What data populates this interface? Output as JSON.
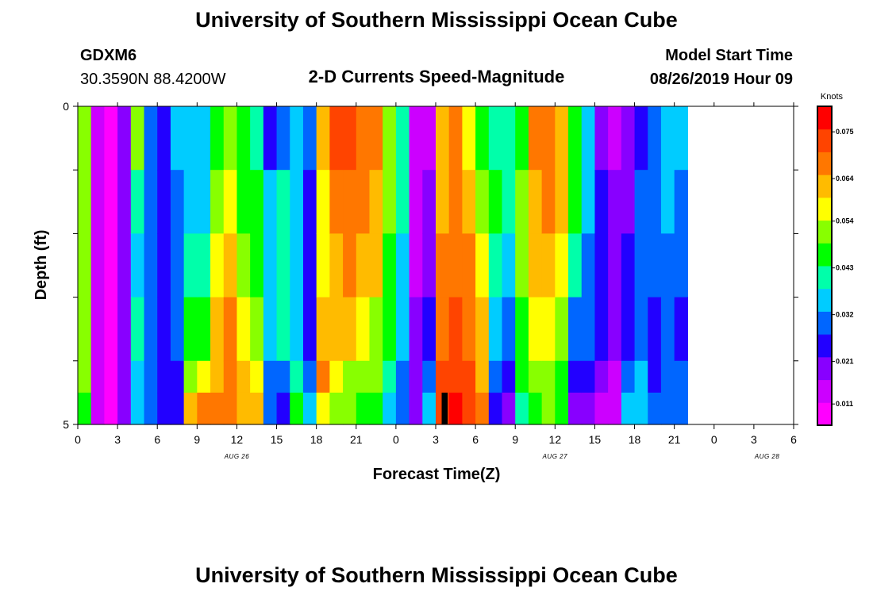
{
  "header": {
    "title": "University of Southern Mississippi Ocean Cube",
    "station_id": "GDXM6",
    "station_coords": "30.3590N 88.4200W",
    "plot_subtitle": "2-D Currents Speed-Magnitude",
    "model_start_label": "Model Start Time",
    "model_start_value": "08/26/2019 Hour 09",
    "footer_title": "University of Southern Mississippi Ocean Cube"
  },
  "chart_data": {
    "type": "heatmap",
    "title": "2-D Currents Speed-Magnitude",
    "xlabel": "Forecast Time(Z)",
    "ylabel": "Depth (ft)",
    "x_range_hours": [
      0,
      54
    ],
    "y_range": [
      0,
      5
    ],
    "x_tick_labels": [
      "0",
      "3",
      "6",
      "9",
      "12",
      "15",
      "18",
      "21",
      "0",
      "3",
      "6",
      "9",
      "12",
      "15",
      "18",
      "21",
      "0",
      "3",
      "6"
    ],
    "y_tick_labels": [
      "0",
      "5"
    ],
    "y_minor_ticks": 4,
    "date_labels": [
      {
        "label": "AUG 26",
        "hour": 12
      },
      {
        "label": "AUG 27",
        "hour": 36
      },
      {
        "label": "AUG 28",
        "hour": 52
      }
    ],
    "colorbar": {
      "unit": "Knots",
      "min": 0.006,
      "max": 0.081,
      "tick_values": [
        "0.011",
        "0.021",
        "0.032",
        "0.043",
        "0.054",
        "0.064",
        "0.075"
      ],
      "colors": [
        "#ff00ff",
        "#cc00ff",
        "#8800ff",
        "#2200ff",
        "#0066ff",
        "#00ccff",
        "#00ffaa",
        "#00ff00",
        "#88ff00",
        "#ffff00",
        "#ffbb00",
        "#ff7700",
        "#ff4400",
        "#ff0000"
      ]
    },
    "depth_rows": [
      "0-1",
      "1-2",
      "2-3",
      "3-4",
      "4-4.5",
      "4.5-5"
    ],
    "speed_by_hour": [
      [
        0.05,
        0.05,
        0.05,
        0.05,
        0.05,
        0.045
      ],
      [
        0.012,
        0.012,
        0.012,
        0.012,
        0.012,
        0.012
      ],
      [
        0.01,
        0.01,
        0.01,
        0.01,
        0.01,
        0.01
      ],
      [
        0.018,
        0.018,
        0.018,
        0.018,
        0.018,
        0.018
      ],
      [
        0.05,
        0.042,
        0.036,
        0.04,
        0.036,
        0.035
      ],
      [
        0.028,
        0.028,
        0.028,
        0.028,
        0.028,
        0.028
      ],
      [
        0.026,
        0.026,
        0.026,
        0.026,
        0.026,
        0.025
      ],
      [
        0.033,
        0.028,
        0.028,
        0.028,
        0.025,
        0.025
      ],
      [
        0.036,
        0.035,
        0.04,
        0.045,
        0.052,
        0.064
      ],
      [
        0.038,
        0.037,
        0.042,
        0.047,
        0.055,
        0.066
      ],
      [
        0.046,
        0.052,
        0.058,
        0.06,
        0.062,
        0.07
      ],
      [
        0.052,
        0.056,
        0.062,
        0.066,
        0.068,
        0.07
      ],
      [
        0.044,
        0.048,
        0.054,
        0.058,
        0.062,
        0.064
      ],
      [
        0.04,
        0.044,
        0.048,
        0.052,
        0.058,
        0.062
      ],
      [
        0.026,
        0.034,
        0.035,
        0.033,
        0.032,
        0.028
      ],
      [
        0.03,
        0.04,
        0.042,
        0.04,
        0.028,
        0.026
      ],
      [
        0.034,
        0.034,
        0.036,
        0.038,
        0.042,
        0.045
      ],
      [
        0.028,
        0.026,
        0.024,
        0.026,
        0.032,
        0.035
      ],
      [
        0.064,
        0.058,
        0.056,
        0.062,
        0.066,
        0.058
      ],
      [
        0.072,
        0.066,
        0.064,
        0.06,
        0.056,
        0.054
      ],
      [
        0.074,
        0.068,
        0.066,
        0.06,
        0.054,
        0.05
      ],
      [
        0.07,
        0.066,
        0.062,
        0.056,
        0.052,
        0.048
      ],
      [
        0.068,
        0.064,
        0.06,
        0.054,
        0.05,
        0.046
      ],
      [
        0.054,
        0.05,
        0.046,
        0.044,
        0.04,
        0.038
      ],
      [
        0.042,
        0.04,
        0.038,
        0.034,
        0.03,
        0.028
      ],
      [
        0.012,
        0.014,
        0.016,
        0.018,
        0.02,
        0.022
      ],
      [
        0.016,
        0.018,
        0.02,
        0.024,
        0.03,
        0.034
      ],
      [
        0.062,
        0.06,
        0.066,
        0.07,
        0.072,
        0.074
      ],
      [
        0.066,
        0.068,
        0.07,
        0.072,
        0.074,
        0.076
      ],
      [
        0.058,
        0.062,
        0.066,
        0.07,
        0.072,
        0.074
      ],
      [
        0.048,
        0.052,
        0.056,
        0.06,
        0.064,
        0.066
      ],
      [
        0.042,
        0.046,
        0.04,
        0.034,
        0.028,
        0.024
      ],
      [
        0.04,
        0.042,
        0.036,
        0.03,
        0.026,
        0.022
      ],
      [
        0.046,
        0.052,
        0.05,
        0.048,
        0.044,
        0.04
      ],
      [
        0.066,
        0.064,
        0.06,
        0.056,
        0.052,
        0.048
      ],
      [
        0.07,
        0.068,
        0.064,
        0.058,
        0.054,
        0.05
      ],
      [
        0.064,
        0.062,
        0.058,
        0.052,
        0.048,
        0.044
      ],
      [
        0.046,
        0.048,
        0.04,
        0.032,
        0.026,
        0.022
      ],
      [
        0.034,
        0.036,
        0.032,
        0.028,
        0.024,
        0.02
      ],
      [
        0.02,
        0.024,
        0.026,
        0.024,
        0.018,
        0.014
      ],
      [
        0.016,
        0.018,
        0.02,
        0.018,
        0.014,
        0.012
      ],
      [
        0.02,
        0.022,
        0.024,
        0.026,
        0.03,
        0.036
      ],
      [
        0.026,
        0.028,
        0.03,
        0.032,
        0.034,
        0.036
      ],
      [
        0.032,
        0.03,
        0.028,
        0.026,
        0.026,
        0.028
      ],
      [
        0.038,
        0.036,
        0.032,
        0.028,
        0.028,
        0.03
      ],
      [
        0.034,
        0.03,
        0.028,
        0.026,
        0.028,
        0.032
      ]
    ],
    "missing_cell": {
      "hour": 27,
      "depth_row": 5
    }
  }
}
